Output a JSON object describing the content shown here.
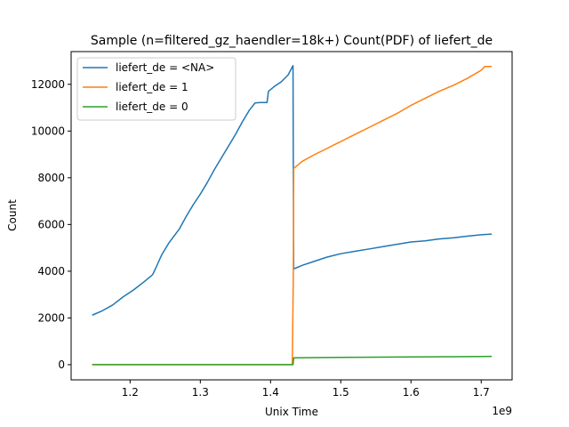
{
  "chart_data": {
    "type": "line",
    "title": "Sample (n=filtered_gz_haendler=18k+) Count(PDF) of liefert_de",
    "xlabel": "Unix Time",
    "ylabel": "Count",
    "x_offset_label": "1e9",
    "xlim": [
      1116000000,
      1744000000
    ],
    "ylim": [
      -650,
      13400
    ],
    "x_ticks": [
      1200000000,
      1300000000,
      1400000000,
      1500000000,
      1600000000,
      1700000000
    ],
    "x_tick_labels": [
      "1.2",
      "1.3",
      "1.4",
      "1.5",
      "1.6",
      "1.7"
    ],
    "y_ticks": [
      0,
      2000,
      4000,
      6000,
      8000,
      10000,
      12000
    ],
    "y_tick_labels": [
      "0",
      "2000",
      "4000",
      "6000",
      "8000",
      "10000",
      "12000"
    ],
    "grid": false,
    "legend_position": "top-left",
    "series": [
      {
        "name": "liefert_de = <NA>",
        "color": "#1f77b4",
        "x": [
          1146000000,
          1160000000,
          1175000000,
          1190000000,
          1205000000,
          1220000000,
          1232000000,
          1236000000,
          1245000000,
          1255000000,
          1260000000,
          1270000000,
          1280000000,
          1290000000,
          1300000000,
          1310000000,
          1320000000,
          1330000000,
          1340000000,
          1350000000,
          1360000000,
          1370000000,
          1378000000,
          1385000000,
          1395000000,
          1397000000,
          1405000000,
          1415000000,
          1425000000,
          1432000000,
          1432500000,
          1433000000,
          1445000000,
          1460000000,
          1480000000,
          1500000000,
          1520000000,
          1540000000,
          1560000000,
          1580000000,
          1600000000,
          1620000000,
          1640000000,
          1660000000,
          1680000000,
          1700000000,
          1715000000
        ],
        "y": [
          2120,
          2300,
          2550,
          2900,
          3200,
          3550,
          3850,
          4100,
          4700,
          5200,
          5400,
          5800,
          6350,
          6850,
          7300,
          7800,
          8350,
          8850,
          9350,
          9850,
          10400,
          10900,
          11200,
          11220,
          11220,
          11700,
          11900,
          12100,
          12400,
          12800,
          8000,
          4100,
          4250,
          4400,
          4600,
          4750,
          4850,
          4950,
          5050,
          5150,
          5250,
          5300,
          5380,
          5430,
          5500,
          5560,
          5590
        ]
      },
      {
        "name": "liefert_de = 1",
        "color": "#ff7f0e",
        "x": [
          1146000000,
          1431000000,
          1432500000,
          1433000000,
          1445000000,
          1460000000,
          1480000000,
          1500000000,
          1520000000,
          1540000000,
          1560000000,
          1580000000,
          1600000000,
          1620000000,
          1640000000,
          1660000000,
          1680000000,
          1700000000,
          1705000000,
          1715000000
        ],
        "y": [
          0,
          0,
          4000,
          8400,
          8700,
          8950,
          9250,
          9550,
          9850,
          10150,
          10450,
          10750,
          11100,
          11400,
          11700,
          11950,
          12250,
          12600,
          12760,
          12760
        ]
      },
      {
        "name": "liefert_de = 0",
        "color": "#2ca02c",
        "x": [
          1146000000,
          1432000000,
          1433000000,
          1460000000,
          1500000000,
          1550000000,
          1600000000,
          1650000000,
          1700000000,
          1715000000
        ],
        "y": [
          0,
          0,
          290,
          300,
          310,
          320,
          330,
          340,
          350,
          355
        ]
      }
    ]
  }
}
